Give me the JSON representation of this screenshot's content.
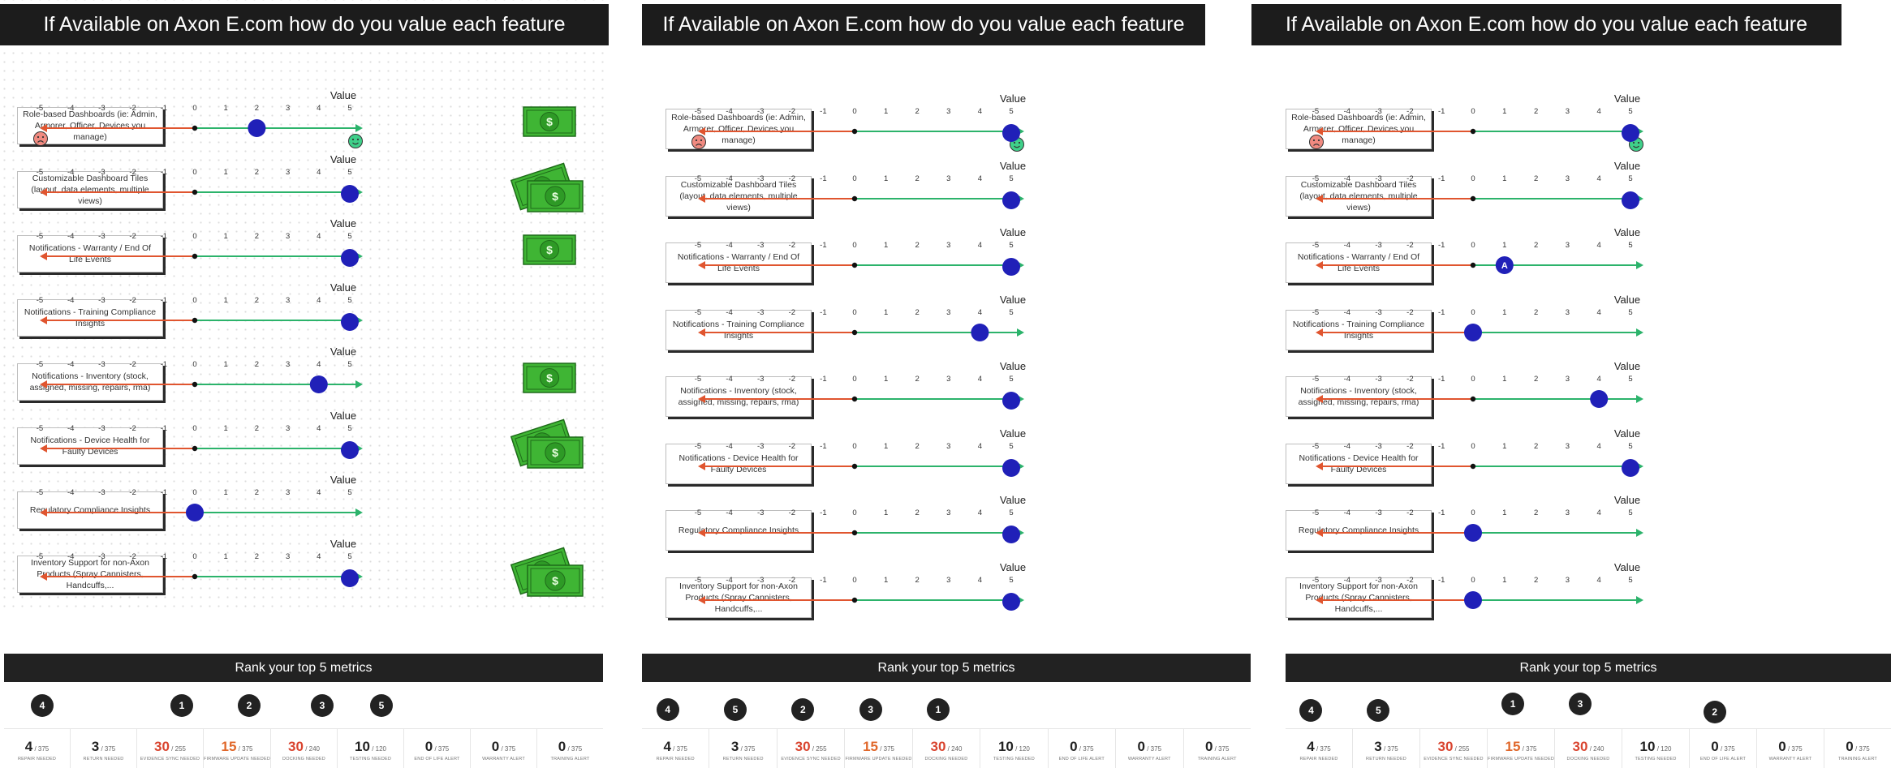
{
  "banner_title": "If Available on Axon E.com how do you value each feature",
  "scale_title": "Value",
  "ticks": [
    "-5",
    "-4",
    "-3",
    "-2",
    "-1",
    "0",
    "1",
    "2",
    "3",
    "4",
    "5"
  ],
  "features": [
    "Role-based Dashboards (ie: Admin, Armorer, Officer, Devices you manage)",
    "Customizable Dashboard Tiles  (layout, data elements, multiple views)",
    "Notifications - Warranty / End Of Life Events",
    "Notifications - Training Compliance Insights",
    "Notifications - Inventory (stock, assigned, missing, repairs, rma)",
    "Notifications - Device Health for Faulty Devices",
    "Regulatory Compliance Insights",
    "Inventory Support for non-Axon Products (Spray Cannisters, Handcuffs,..."
  ],
  "panels": [
    {
      "values": [
        2,
        5,
        5,
        5,
        4,
        5,
        0,
        5
      ],
      "marker_letters": [
        "",
        "",
        "",
        "",
        "",
        "",
        "",
        ""
      ]
    },
    {
      "values": [
        5,
        5,
        5,
        4,
        5,
        5,
        5,
        5
      ],
      "marker_letters": [
        "",
        "",
        "",
        "",
        "",
        "",
        "",
        ""
      ]
    },
    {
      "values": [
        5,
        5,
        1,
        0,
        4,
        5,
        0,
        0
      ],
      "marker_letters": [
        "",
        "",
        "A",
        "",
        "",
        "",
        "",
        ""
      ]
    }
  ],
  "money_rows": [
    0,
    1,
    2,
    4,
    5,
    7
  ],
  "money_symbol": "$",
  "rank_title": "Rank your top 5 metrics",
  "rank_badges": [
    [
      {
        "n": "4",
        "col": 0
      },
      {
        "n": "1",
        "col": 2
      },
      {
        "n": "2",
        "col": 3
      },
      {
        "n": "3",
        "col": 4
      },
      {
        "n": "5",
        "col": 5
      }
    ],
    [
      {
        "n": "4",
        "col": 0
      },
      {
        "n": "5",
        "col": 1
      },
      {
        "n": "2",
        "col": 2
      },
      {
        "n": "3",
        "col": 3
      },
      {
        "n": "1",
        "col": 4
      }
    ],
    [
      {
        "n": "4",
        "col": 0
      },
      {
        "n": "5",
        "col": 1
      },
      {
        "n": "1",
        "col": 3
      },
      {
        "n": "3",
        "col": 4
      },
      {
        "n": "2",
        "col": 6
      }
    ]
  ],
  "metrics": [
    {
      "num": "4",
      "den": "/ 375",
      "label": "Repair Needed",
      "color": "#222222"
    },
    {
      "num": "3",
      "den": "/ 375",
      "label": "Return Needed",
      "color": "#222222"
    },
    {
      "num": "30",
      "den": "/ 255",
      "label": "Evidence Sync Needed",
      "color": "#d9442f"
    },
    {
      "num": "15",
      "den": "/ 375",
      "label": "Firmware Update Needed",
      "color": "#e0672a"
    },
    {
      "num": "30",
      "den": "/ 240",
      "label": "Docking Needed",
      "color": "#d9442f"
    },
    {
      "num": "10",
      "den": "/ 120",
      "label": "Testing Needed",
      "color": "#222222"
    },
    {
      "num": "0",
      "den": "/ 375",
      "label": "End of Life Alert",
      "color": "#222222"
    },
    {
      "num": "0",
      "den": "/ 375",
      "label": "Warranty Alert",
      "color": "#222222"
    },
    {
      "num": "0",
      "den": "/ 375",
      "label": "Training Alert",
      "color": "#222222"
    }
  ],
  "colors": {
    "negative": "#e0552f",
    "positive": "#2cb36b",
    "marker": "#2020b8",
    "sad_face": "#f08a80",
    "happy_face": "#3fd08a",
    "money": "#3fb534"
  }
}
